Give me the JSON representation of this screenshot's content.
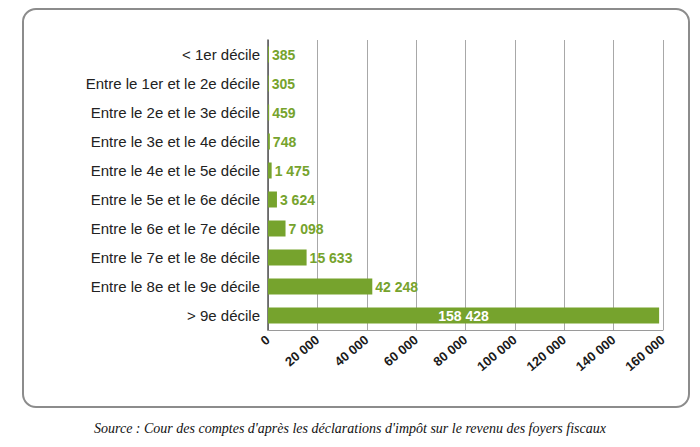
{
  "chart_data": {
    "type": "bar",
    "orientation": "horizontal",
    "categories": [
      "< 1er décile",
      "Entre le 1er et le 2e décile",
      "Entre le 2e et le 3e décile",
      "Entre le 3e et le 4e décile",
      "Entre le 4e et le 5e décile",
      "Entre le 5e et le 6e décile",
      "Entre le 6e et le 7e décile",
      "Entre le 7e et le 8e décile",
      "Entre le 8e et le 9e décile",
      "> 9e décile"
    ],
    "values": [
      385,
      305,
      459,
      748,
      1475,
      3624,
      7098,
      15633,
      42248,
      158428
    ],
    "value_labels": [
      "385",
      "305",
      "459",
      "748",
      "1 475",
      "3 624",
      "7 098",
      "15 633",
      "42 248",
      "158 428"
    ],
    "color": "#76a32d",
    "xlim": [
      0,
      160000
    ],
    "xticks": [
      0,
      {
        "value": 20000,
        "label": "20 000"
      },
      {
        "value": 40000,
        "label": "40 000"
      },
      {
        "value": 60000,
        "label": "60 000"
      },
      {
        "value": 80000,
        "label": "80 000"
      },
      {
        "value": 100000,
        "label": "100 000"
      },
      {
        "value": 120000,
        "label": "120 000"
      },
      {
        "value": 140000,
        "label": "140 000"
      },
      {
        "value": 160000,
        "label": "160 000"
      }
    ],
    "grid": true,
    "data_labels": true
  },
  "caption": "Source : Cour des comptes d'après les déclarations d'impôt sur le revenu des foyers fiscaux"
}
